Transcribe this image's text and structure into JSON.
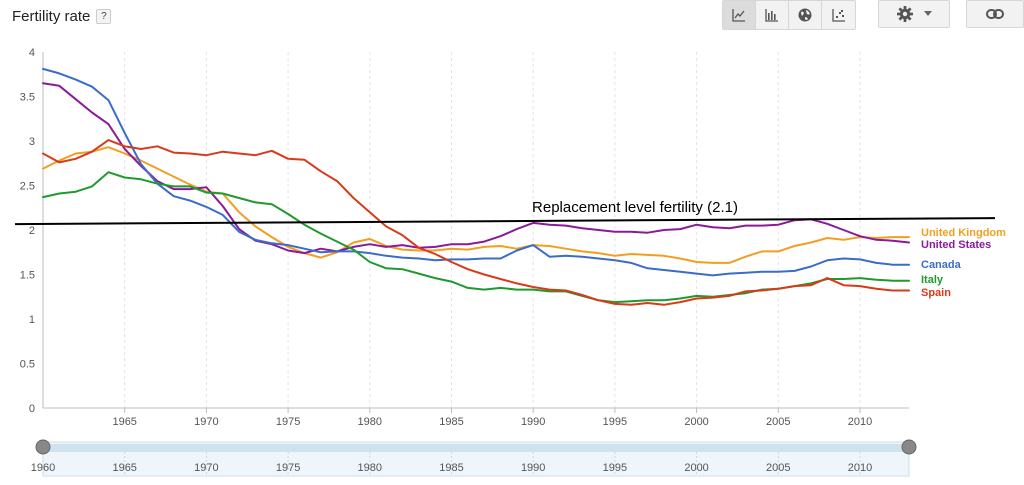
{
  "header": {
    "title": "Fertility rate",
    "help_label": "?"
  },
  "toolbar": {
    "buttons": [
      "line-chart-icon",
      "bar-chart-icon",
      "map-globe-icon",
      "scatter-chart-icon"
    ],
    "active": "line-chart-icon",
    "settings_icon": "gear-icon",
    "link_icon": "link-icon"
  },
  "chart_data": {
    "type": "line",
    "title": "",
    "xlabel": "",
    "ylabel": "",
    "xlim": [
      1960,
      2013
    ],
    "ylim": [
      0,
      4
    ],
    "x_ticks": [
      1965,
      1970,
      1975,
      1980,
      1985,
      1990,
      1995,
      2000,
      2005,
      2010
    ],
    "y_ticks": [
      "0",
      "0.5",
      "1",
      "1.5",
      "2",
      "2.5",
      "3",
      "3.5",
      "4"
    ],
    "grid": "vertical-dashed",
    "x": [
      1960,
      1961,
      1962,
      1963,
      1964,
      1965,
      1966,
      1967,
      1968,
      1969,
      1970,
      1971,
      1972,
      1973,
      1974,
      1975,
      1976,
      1977,
      1978,
      1979,
      1980,
      1981,
      1982,
      1983,
      1984,
      1985,
      1986,
      1987,
      1988,
      1989,
      1990,
      1991,
      1992,
      1993,
      1994,
      1995,
      1996,
      1997,
      1998,
      1999,
      2000,
      2001,
      2002,
      2003,
      2004,
      2005,
      2006,
      2007,
      2008,
      2009,
      2010,
      2011,
      2012,
      2013
    ],
    "series": [
      {
        "name": "United Kingdom",
        "color": "#f29f1f",
        "values": [
          2.69,
          2.78,
          2.86,
          2.88,
          2.93,
          2.86,
          2.78,
          2.69,
          2.6,
          2.51,
          2.43,
          2.41,
          2.2,
          2.04,
          1.92,
          1.81,
          1.74,
          1.69,
          1.75,
          1.86,
          1.9,
          1.82,
          1.78,
          1.77,
          1.77,
          1.79,
          1.78,
          1.81,
          1.82,
          1.79,
          1.83,
          1.82,
          1.79,
          1.76,
          1.74,
          1.71,
          1.73,
          1.72,
          1.71,
          1.68,
          1.64,
          1.63,
          1.63,
          1.7,
          1.76,
          1.76,
          1.82,
          1.86,
          1.91,
          1.89,
          1.92,
          1.91,
          1.92,
          1.92
        ]
      },
      {
        "name": "United States",
        "color": "#8b1a99",
        "values": [
          3.65,
          3.62,
          3.47,
          3.32,
          3.19,
          2.91,
          2.72,
          2.55,
          2.46,
          2.46,
          2.48,
          2.27,
          2.01,
          1.88,
          1.84,
          1.77,
          1.74,
          1.79,
          1.76,
          1.81,
          1.84,
          1.81,
          1.83,
          1.8,
          1.81,
          1.84,
          1.84,
          1.87,
          1.93,
          2.01,
          2.08,
          2.06,
          2.05,
          2.02,
          2.0,
          1.98,
          1.98,
          1.97,
          2.0,
          2.01,
          2.06,
          2.03,
          2.02,
          2.05,
          2.05,
          2.06,
          2.11,
          2.12,
          2.07,
          2.0,
          1.93,
          1.89,
          1.88,
          1.86
        ]
      },
      {
        "name": "Canada",
        "color": "#3b6cc9",
        "values": [
          3.81,
          3.76,
          3.69,
          3.61,
          3.46,
          3.09,
          2.74,
          2.52,
          2.38,
          2.33,
          2.26,
          2.17,
          1.98,
          1.89,
          1.85,
          1.83,
          1.79,
          1.75,
          1.76,
          1.76,
          1.74,
          1.71,
          1.69,
          1.68,
          1.66,
          1.67,
          1.67,
          1.68,
          1.68,
          1.77,
          1.83,
          1.7,
          1.71,
          1.7,
          1.68,
          1.66,
          1.63,
          1.57,
          1.55,
          1.53,
          1.51,
          1.49,
          1.51,
          1.52,
          1.53,
          1.53,
          1.54,
          1.59,
          1.66,
          1.68,
          1.67,
          1.63,
          1.61,
          1.61
        ]
      },
      {
        "name": "Italy",
        "color": "#1f9a2f",
        "values": [
          2.37,
          2.41,
          2.43,
          2.49,
          2.65,
          2.59,
          2.57,
          2.52,
          2.49,
          2.49,
          2.42,
          2.41,
          2.36,
          2.31,
          2.29,
          2.18,
          2.06,
          1.96,
          1.87,
          1.78,
          1.64,
          1.57,
          1.56,
          1.51,
          1.46,
          1.42,
          1.35,
          1.33,
          1.35,
          1.33,
          1.33,
          1.31,
          1.31,
          1.26,
          1.21,
          1.19,
          1.2,
          1.21,
          1.21,
          1.23,
          1.26,
          1.25,
          1.27,
          1.29,
          1.33,
          1.34,
          1.37,
          1.4,
          1.45,
          1.45,
          1.46,
          1.44,
          1.43,
          1.43
        ]
      },
      {
        "name": "Spain",
        "color": "#d93a1a",
        "values": [
          2.86,
          2.76,
          2.8,
          2.88,
          3.01,
          2.94,
          2.91,
          2.94,
          2.87,
          2.86,
          2.84,
          2.88,
          2.86,
          2.84,
          2.89,
          2.8,
          2.79,
          2.66,
          2.55,
          2.36,
          2.2,
          2.04,
          1.94,
          1.8,
          1.73,
          1.64,
          1.56,
          1.5,
          1.45,
          1.4,
          1.36,
          1.33,
          1.32,
          1.27,
          1.21,
          1.17,
          1.16,
          1.18,
          1.16,
          1.19,
          1.23,
          1.24,
          1.26,
          1.31,
          1.32,
          1.34,
          1.37,
          1.38,
          1.46,
          1.38,
          1.37,
          1.34,
          1.32,
          1.32
        ]
      }
    ],
    "reference_line": {
      "value": 2.1,
      "label": "Replacement level fertility (2.1)",
      "color": "#000000"
    },
    "legend": "right-inline",
    "range_slider": {
      "ticks": [
        "1960",
        "1965",
        "1970",
        "1975",
        "1980",
        "1985",
        "1990",
        "1995",
        "2000",
        "2005",
        "2010"
      ],
      "start": 1960,
      "end": 2013
    }
  }
}
